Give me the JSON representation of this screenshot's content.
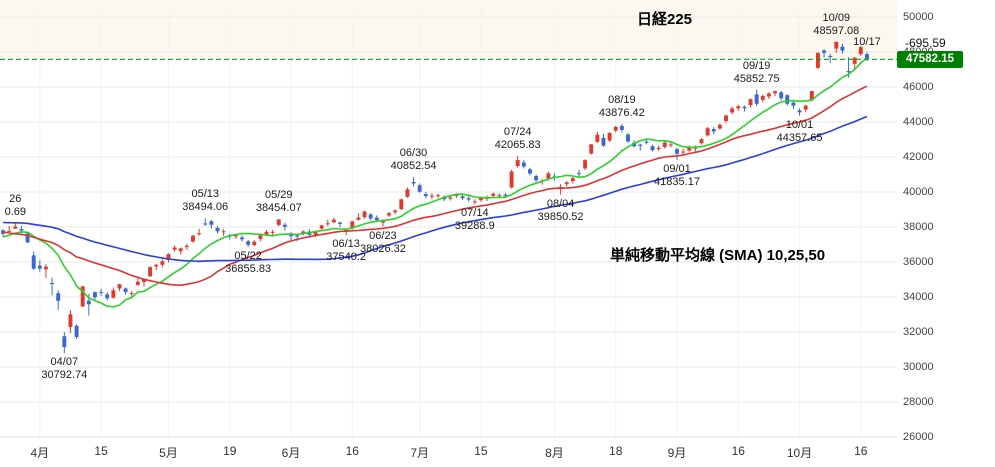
{
  "title": "日経225",
  "sma_label": "単純移動平均線 (SMA) 10,25,50",
  "price_line": {
    "date_label": "10/17",
    "change": "-695.59",
    "last": "47582.15",
    "value": 47582.15,
    "badge_color": "#008000",
    "line_color": "#0aa02a"
  },
  "chart_data": {
    "type": "candlestick",
    "title": "日経225",
    "y_axis": {
      "min": 26000,
      "max": 50000,
      "step": 2000,
      "ticks": [
        26000,
        28000,
        30000,
        32000,
        34000,
        36000,
        38000,
        40000,
        42000,
        44000,
        46000,
        48000,
        50000
      ]
    },
    "x_ticks": [
      {
        "label": "4月",
        "i": 6
      },
      {
        "label": "15",
        "i": 16
      },
      {
        "label": "5月",
        "i": 27
      },
      {
        "label": "19",
        "i": 37
      },
      {
        "label": "6月",
        "i": 47
      },
      {
        "label": "16",
        "i": 57
      },
      {
        "label": "7月",
        "i": 68
      },
      {
        "label": "15",
        "i": 78
      },
      {
        "label": "8月",
        "i": 90
      },
      {
        "label": "18",
        "i": 100
      },
      {
        "label": "9月",
        "i": 110
      },
      {
        "label": "16",
        "i": 120
      },
      {
        "label": "10月",
        "i": 130
      },
      {
        "label": "16",
        "i": 140
      }
    ],
    "colors": {
      "up": "#e0392d",
      "down": "#3b68cf",
      "above_band": "#f6f2e0"
    },
    "sma": {
      "periods": [
        10,
        25,
        50
      ],
      "colors": [
        "#2bd22b",
        "#e03232",
        "#2b3fd6"
      ]
    },
    "pre_closes": [
      39027,
      39566,
      39016,
      39414,
      39513,
      39572,
      38520,
      38798,
      38831,
      39066,
      38787,
      38801,
      38963,
      39461,
      39149,
      39174,
      39270,
      39164,
      38678,
      38776,
      38237,
      38143,
      38256,
      37156,
      37785,
      37331,
      37418,
      37704,
      36887,
      37028,
      36793,
      36819,
      36790,
      37053,
      37396,
      37845,
      37751,
      37608,
      37780,
      37677
    ],
    "candles": [
      [
        "03/24",
        37810,
        37873,
        37432,
        37608
      ],
      [
        "03/25",
        37777,
        38052,
        37745,
        37780
      ],
      [
        "03/26",
        37907,
        38220.69,
        37887,
        38027
      ],
      [
        "03/27",
        37884,
        38075,
        37639,
        37799
      ],
      [
        "03/28",
        37635,
        37711,
        37076,
        37120
      ],
      [
        "03/31",
        36380,
        36600,
        35541,
        35617
      ],
      [
        "04/01",
        35793,
        36091,
        35428,
        35624
      ],
      [
        "04/02",
        35584,
        35884,
        35086,
        35726
      ],
      [
        "04/03",
        34803,
        35107,
        34102,
        34736
      ],
      [
        "04/04",
        34215,
        34382,
        33263,
        33781
      ],
      [
        "04/07",
        31758,
        31999,
        30792.74,
        31136
      ],
      [
        "04/08",
        32286,
        33258,
        31951,
        33013
      ],
      [
        "04/09",
        32359,
        32437,
        31596,
        31714
      ],
      [
        "04/10",
        33460,
        34639,
        33421,
        34609
      ],
      [
        "04/11",
        33793,
        34182,
        32933,
        33586
      ],
      [
        "04/14",
        34270,
        34325,
        33795,
        33982
      ],
      [
        "04/15",
        34282,
        34468,
        34057,
        34268
      ],
      [
        "04/16",
        34150,
        34276,
        33806,
        33920
      ],
      [
        "04/17",
        33963,
        34546,
        33903,
        34377
      ],
      [
        "04/18",
        34486,
        34758,
        34336,
        34730
      ],
      [
        "04/21",
        34490,
        34546,
        34128,
        34280
      ],
      [
        "04/22",
        34171,
        34356,
        33959,
        34220
      ],
      [
        "04/23",
        34694,
        35088,
        34639,
        34868
      ],
      [
        "04/24",
        34855,
        35058,
        34603,
        35039
      ],
      [
        "04/25",
        35186,
        35754,
        35141,
        35705
      ],
      [
        "04/28",
        35748,
        35897,
        35541,
        35839
      ],
      [
        "04/30",
        35842,
        36155,
        35690,
        36045
      ],
      [
        "05/01",
        36126,
        36490,
        35972,
        36452
      ],
      [
        "05/02",
        36705,
        36940,
        36580,
        36830
      ],
      [
        "05/07",
        36620,
        36825,
        36427,
        36779
      ],
      [
        "05/08",
        36858,
        37045,
        36684,
        36928
      ],
      [
        "05/09",
        37168,
        37559,
        37108,
        37503
      ],
      [
        "05/12",
        37588,
        37886,
        37499,
        37644
      ],
      [
        "05/13",
        38202,
        38494.06,
        38068,
        38183
      ],
      [
        "05/14",
        38328,
        38398,
        37917,
        38128
      ],
      [
        "05/15",
        37949,
        38048,
        37619,
        37755
      ],
      [
        "05/16",
        37751,
        37891,
        37481,
        37754
      ],
      [
        "05/19",
        37508,
        37599,
        37280,
        37499
      ],
      [
        "05/20",
        37459,
        37600,
        37320,
        37529
      ],
      [
        "05/21",
        37405,
        37520,
        37162,
        37298
      ],
      [
        "05/22",
        37186,
        37273,
        36855.83,
        36986
      ],
      [
        "05/23",
        36966,
        37240,
        36901,
        37160
      ],
      [
        "05/26",
        37324,
        37540,
        37179,
        37531
      ],
      [
        "05/27",
        37580,
        37825,
        37518,
        37724
      ],
      [
        "05/28",
        37691,
        37839,
        37486,
        37722
      ],
      [
        "05/29",
        38122,
        38454.07,
        38035,
        38432
      ],
      [
        "05/30",
        38125,
        38236,
        37795,
        38012
      ],
      [
        "06/02",
        37640,
        37700,
        37248,
        37470
      ],
      [
        "06/03",
        37517,
        37556,
        37186,
        37447
      ],
      [
        "06/04",
        37630,
        37810,
        37541,
        37747
      ],
      [
        "06/05",
        37742,
        37866,
        37482,
        37554
      ],
      [
        "06/06",
        37565,
        37786,
        37413,
        37741
      ],
      [
        "06/09",
        37905,
        38136,
        37857,
        38088
      ],
      [
        "06/10",
        38168,
        38420,
        38047,
        38211
      ],
      [
        "06/11",
        38271,
        38529,
        38227,
        38421
      ],
      [
        "06/12",
        38248,
        38317,
        37987,
        38173
      ],
      [
        "06/13",
        37763,
        37920,
        37540.2,
        37834
      ],
      [
        "06/16",
        37920,
        38364,
        37866,
        38311
      ],
      [
        "06/17",
        38414,
        38780,
        38370,
        38536
      ],
      [
        "06/18",
        38558,
        38942,
        38478,
        38885
      ],
      [
        "06/19",
        38722,
        38791,
        38366,
        38488
      ],
      [
        "06/20",
        38538,
        38663,
        38268,
        38403
      ],
      [
        "06/23",
        38251,
        38436,
        38026.32,
        38354
      ],
      [
        "06/24",
        38660,
        38852,
        38578,
        38790
      ],
      [
        "06/25",
        38844,
        39015,
        38716,
        38942
      ],
      [
        "06/26",
        39022,
        39602,
        38968,
        39584
      ],
      [
        "06/27",
        39724,
        40258,
        39673,
        40150
      ],
      [
        "06/30",
        40573,
        40852.54,
        40317,
        40487
      ],
      [
        "07/01",
        40384,
        40488,
        39958,
        40012
      ],
      [
        "07/02",
        39879,
        40005,
        39651,
        39762
      ],
      [
        "07/03",
        39726,
        39925,
        39583,
        39786
      ],
      [
        "07/04",
        39757,
        39913,
        39660,
        39811
      ],
      [
        "07/07",
        39725,
        39815,
        39481,
        39588
      ],
      [
        "07/08",
        39619,
        39797,
        39515,
        39688
      ],
      [
        "07/09",
        39770,
        39930,
        39666,
        39821
      ],
      [
        "07/10",
        39751,
        39862,
        39541,
        39646
      ],
      [
        "07/11",
        39647,
        39788,
        39458,
        39570
      ],
      [
        "07/14",
        39410,
        39575,
        39288.9,
        39460
      ],
      [
        "07/15",
        39532,
        39739,
        39442,
        39678
      ],
      [
        "07/16",
        39646,
        39795,
        39484,
        39663
      ],
      [
        "07/17",
        39781,
        39966,
        39683,
        39901
      ],
      [
        "07/18",
        39787,
        39921,
        39661,
        39819
      ],
      [
        "07/22",
        39846,
        39946,
        39688,
        39775
      ],
      [
        "07/23",
        40254,
        41256,
        40206,
        41171
      ],
      [
        "07/24",
        41486,
        42065.83,
        41399,
        41826
      ],
      [
        "07/25",
        41681,
        41826,
        41344,
        41456
      ],
      [
        "07/28",
        41296,
        41388,
        40948,
        41056
      ],
      [
        "07/29",
        40912,
        40999,
        40575,
        40674
      ],
      [
        "07/30",
        40617,
        40750,
        40417,
        40654
      ],
      [
        "07/31",
        40770,
        41165,
        40640,
        41070
      ],
      [
        "08/01",
        40888,
        41061,
        40666,
        40800
      ],
      [
        "08/04",
        40218,
        40447,
        39850.52,
        40290
      ],
      [
        "08/05",
        40446,
        40622,
        40321,
        40550
      ],
      [
        "08/06",
        40626,
        40867,
        40493,
        40794
      ],
      [
        "08/07",
        41071,
        41268,
        40841,
        41059
      ],
      [
        "08/08",
        41350,
        41871,
        41255,
        41820
      ],
      [
        "08/12",
        42198,
        42745,
        42133,
        42718
      ],
      [
        "08/13",
        42868,
        43451,
        42791,
        43274
      ],
      [
        "08/14",
        43095,
        43301,
        42576,
        42649
      ],
      [
        "08/15",
        42943,
        43400,
        42850,
        43378
      ],
      [
        "08/18",
        43505,
        43779,
        43418,
        43714
      ],
      [
        "08/19",
        43773,
        43876.42,
        43394,
        43546
      ],
      [
        "08/20",
        43283,
        43382,
        42808,
        42888
      ],
      [
        "08/21",
        42813,
        42957,
        42542,
        42610
      ],
      [
        "08/22",
        42705,
        42755,
        42366,
        42633
      ],
      [
        "08/25",
        42881,
        42999,
        42721,
        42807
      ],
      [
        "08/26",
        42612,
        42690,
        42311,
        42394
      ],
      [
        "08/27",
        42456,
        42651,
        42335,
        42520
      ],
      [
        "08/28",
        42576,
        42909,
        42481,
        42828
      ],
      [
        "08/29",
        42702,
        42866,
        42537,
        42718
      ],
      [
        "09/01",
        42446,
        42526,
        41835.17,
        42188
      ],
      [
        "09/02",
        42276,
        42481,
        42090,
        42310
      ],
      [
        "09/03",
        42367,
        42653,
        42299,
        42580
      ],
      [
        "09/04",
        42478,
        42661,
        42266,
        42555
      ],
      [
        "09/05",
        42790,
        43072,
        42704,
        43018
      ],
      [
        "09/08",
        43240,
        43721,
        43166,
        43643
      ],
      [
        "09/09",
        43594,
        43704,
        43302,
        43459
      ],
      [
        "09/10",
        43630,
        43918,
        43570,
        43837
      ],
      [
        "09/11",
        44060,
        44397,
        43936,
        44372
      ],
      [
        "09/12",
        44544,
        44888,
        44443,
        44768
      ],
      [
        "09/16",
        44777,
        44983,
        44644,
        44902
      ],
      [
        "09/17",
        44867,
        44956,
        44599,
        44790
      ],
      [
        "09/18",
        44963,
        45338,
        44808,
        45303
      ],
      [
        "09/19",
        45580,
        45852.75,
        44912,
        45045
      ],
      [
        "09/22",
        45263,
        45565,
        45117,
        45493
      ],
      [
        "09/24",
        45461,
        45700,
        45314,
        45630
      ],
      [
        "09/25",
        45639,
        45794,
        45478,
        45754
      ],
      [
        "09/26",
        45698,
        45770,
        45235,
        45354
      ],
      [
        "09/29",
        45531,
        45581,
        44936,
        45044
      ],
      [
        "09/30",
        45112,
        45199,
        44737,
        44932
      ],
      [
        "10/01",
        44663,
        44768,
        44357.65,
        44550
      ],
      [
        "10/02",
        44704,
        44982,
        44549,
        44936
      ],
      [
        "10/03",
        45260,
        45770,
        45175,
        45769
      ],
      [
        "10/06",
        47097,
        47981,
        47030,
        47944
      ],
      [
        "10/07",
        48088,
        48150,
        47687,
        47950
      ],
      [
        "10/08",
        47773,
        47888,
        47355,
        47734
      ],
      [
        "10/09",
        48193,
        48597.08,
        47957,
        48580
      ],
      [
        "10/10",
        48303,
        48465,
        47904,
        48088
      ],
      [
        "10/14",
        46912,
        47705,
        46536,
        46847
      ],
      [
        "10/15",
        47327,
        47722,
        46990,
        47672
      ],
      [
        "10/16",
        47877,
        48335,
        47783,
        48277.74
      ],
      [
        "10/17",
        47876,
        47967,
        47483,
        47582.15
      ]
    ],
    "annotations": [
      {
        "i": 2,
        "pos": "above",
        "line1": "26",
        "line2": "0.69"
      },
      {
        "i": 10,
        "pos": "below",
        "line1": "04/07",
        "line2": "30792.74"
      },
      {
        "i": 33,
        "pos": "above",
        "line1": "05/13",
        "line2": "38494.06"
      },
      {
        "i": 40,
        "pos": "below",
        "line1": "05/22",
        "line2": "36855.83"
      },
      {
        "i": 45,
        "pos": "above",
        "line1": "05/29",
        "line2": "38454.07"
      },
      {
        "i": 56,
        "pos": "below",
        "line1": "06/13",
        "line2": "37540.2"
      },
      {
        "i": 62,
        "pos": "below",
        "line1": "06/23",
        "line2": "38026.32"
      },
      {
        "i": 67,
        "pos": "above",
        "line1": "06/30",
        "line2": "40852.54"
      },
      {
        "i": 77,
        "pos": "below",
        "line1": "07/14",
        "line2": "39288.9"
      },
      {
        "i": 84,
        "pos": "above",
        "line1": "07/24",
        "line2": "42065.83"
      },
      {
        "i": 91,
        "pos": "below",
        "line1": "08/04",
        "line2": "39850.52"
      },
      {
        "i": 101,
        "pos": "above",
        "line1": "08/19",
        "line2": "43876.42"
      },
      {
        "i": 110,
        "pos": "below",
        "line1": "09/01",
        "line2": "41835.17"
      },
      {
        "i": 123,
        "pos": "above",
        "line1": "09/19",
        "line2": "45852.75"
      },
      {
        "i": 130,
        "pos": "below",
        "line1": "10/01",
        "line2": "44357.65"
      },
      {
        "i": 136,
        "pos": "above",
        "line1": "10/09",
        "line2": "48597.08"
      },
      {
        "i": 141,
        "pos": "above",
        "line1": "10/17",
        "line2": ""
      }
    ]
  }
}
